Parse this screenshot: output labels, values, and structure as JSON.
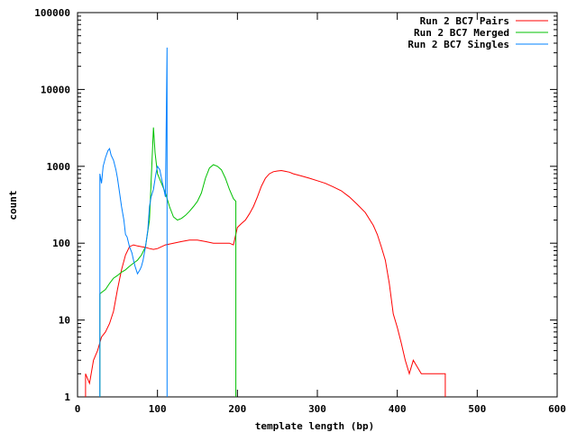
{
  "chart_data": {
    "type": "line",
    "title": "",
    "xlabel": "template length (bp)",
    "ylabel": "count",
    "xlim": [
      0,
      600
    ],
    "ylim": [
      1,
      100000
    ],
    "yscale": "log",
    "grid": false,
    "legend_position": "top-right",
    "x_ticks": [
      0,
      100,
      200,
      300,
      400,
      500,
      600
    ],
    "x_tick_labels": [
      "0",
      "100",
      "200",
      "300",
      "400",
      "500",
      "600"
    ],
    "y_ticks": [
      1,
      10,
      100,
      1000,
      10000,
      100000
    ],
    "y_tick_labels": [
      "1",
      "10",
      "100",
      "1000",
      "10000",
      "100000"
    ],
    "series": [
      {
        "name": "Run 2 BC7 Pairs",
        "color": "#ff0000",
        "points": [
          [
            10,
            2
          ],
          [
            15,
            1.5
          ],
          [
            20,
            3
          ],
          [
            25,
            4
          ],
          [
            30,
            6
          ],
          [
            35,
            7
          ],
          [
            40,
            9
          ],
          [
            45,
            13
          ],
          [
            50,
            25
          ],
          [
            55,
            45
          ],
          [
            60,
            70
          ],
          [
            65,
            90
          ],
          [
            70,
            95
          ],
          [
            75,
            92
          ],
          [
            80,
            90
          ],
          [
            85,
            88
          ],
          [
            90,
            85
          ],
          [
            95,
            83
          ],
          [
            100,
            85
          ],
          [
            110,
            95
          ],
          [
            120,
            100
          ],
          [
            130,
            105
          ],
          [
            140,
            110
          ],
          [
            150,
            110
          ],
          [
            160,
            105
          ],
          [
            170,
            100
          ],
          [
            180,
            100
          ],
          [
            190,
            100
          ],
          [
            195,
            95
          ],
          [
            200,
            160
          ],
          [
            205,
            180
          ],
          [
            210,
            200
          ],
          [
            215,
            240
          ],
          [
            220,
            300
          ],
          [
            225,
            400
          ],
          [
            230,
            550
          ],
          [
            235,
            700
          ],
          [
            240,
            800
          ],
          [
            245,
            850
          ],
          [
            250,
            870
          ],
          [
            255,
            880
          ],
          [
            260,
            860
          ],
          [
            265,
            840
          ],
          [
            270,
            800
          ],
          [
            280,
            750
          ],
          [
            290,
            700
          ],
          [
            300,
            650
          ],
          [
            310,
            600
          ],
          [
            320,
            540
          ],
          [
            330,
            480
          ],
          [
            340,
            400
          ],
          [
            350,
            320
          ],
          [
            360,
            250
          ],
          [
            370,
            170
          ],
          [
            375,
            130
          ],
          [
            380,
            90
          ],
          [
            385,
            60
          ],
          [
            390,
            30
          ],
          [
            395,
            12
          ],
          [
            400,
            8
          ],
          [
            405,
            5
          ],
          [
            410,
            3
          ],
          [
            415,
            2
          ],
          [
            420,
            3
          ],
          [
            430,
            2
          ],
          [
            440,
            2
          ],
          [
            450,
            2
          ],
          [
            460,
            2
          ]
        ]
      },
      {
        "name": "Run 2 BC7 Merged",
        "color": "#00c000",
        "points": [
          [
            28,
            22
          ],
          [
            35,
            25
          ],
          [
            40,
            30
          ],
          [
            45,
            35
          ],
          [
            50,
            38
          ],
          [
            55,
            42
          ],
          [
            60,
            45
          ],
          [
            65,
            50
          ],
          [
            70,
            55
          ],
          [
            75,
            60
          ],
          [
            80,
            70
          ],
          [
            85,
            90
          ],
          [
            90,
            200
          ],
          [
            95,
            3200
          ],
          [
            97,
            1500
          ],
          [
            100,
            800
          ],
          [
            105,
            600
          ],
          [
            110,
            450
          ],
          [
            115,
            300
          ],
          [
            120,
            220
          ],
          [
            125,
            200
          ],
          [
            130,
            210
          ],
          [
            135,
            230
          ],
          [
            140,
            260
          ],
          [
            145,
            300
          ],
          [
            150,
            350
          ],
          [
            155,
            450
          ],
          [
            160,
            700
          ],
          [
            165,
            950
          ],
          [
            170,
            1050
          ],
          [
            175,
            1000
          ],
          [
            180,
            900
          ],
          [
            185,
            700
          ],
          [
            190,
            500
          ],
          [
            195,
            380
          ],
          [
            198,
            350
          ]
        ]
      },
      {
        "name": "Run 2 BC7 Singles",
        "color": "#0080ff",
        "points": [
          [
            28,
            800
          ],
          [
            30,
            600
          ],
          [
            32,
            1000
          ],
          [
            35,
            1300
          ],
          [
            38,
            1600
          ],
          [
            40,
            1700
          ],
          [
            42,
            1400
          ],
          [
            45,
            1200
          ],
          [
            48,
            900
          ],
          [
            50,
            700
          ],
          [
            52,
            500
          ],
          [
            55,
            300
          ],
          [
            58,
            200
          ],
          [
            60,
            130
          ],
          [
            62,
            120
          ],
          [
            65,
            90
          ],
          [
            68,
            75
          ],
          [
            70,
            60
          ],
          [
            72,
            50
          ],
          [
            75,
            40
          ],
          [
            78,
            45
          ],
          [
            80,
            50
          ],
          [
            82,
            60
          ],
          [
            85,
            90
          ],
          [
            88,
            150
          ],
          [
            90,
            300
          ],
          [
            92,
            400
          ],
          [
            95,
            500
          ],
          [
            98,
            800
          ],
          [
            100,
            1000
          ],
          [
            103,
            900
          ],
          [
            105,
            700
          ],
          [
            108,
            500
          ],
          [
            110,
            400
          ],
          [
            112,
            35000
          ]
        ]
      }
    ]
  }
}
